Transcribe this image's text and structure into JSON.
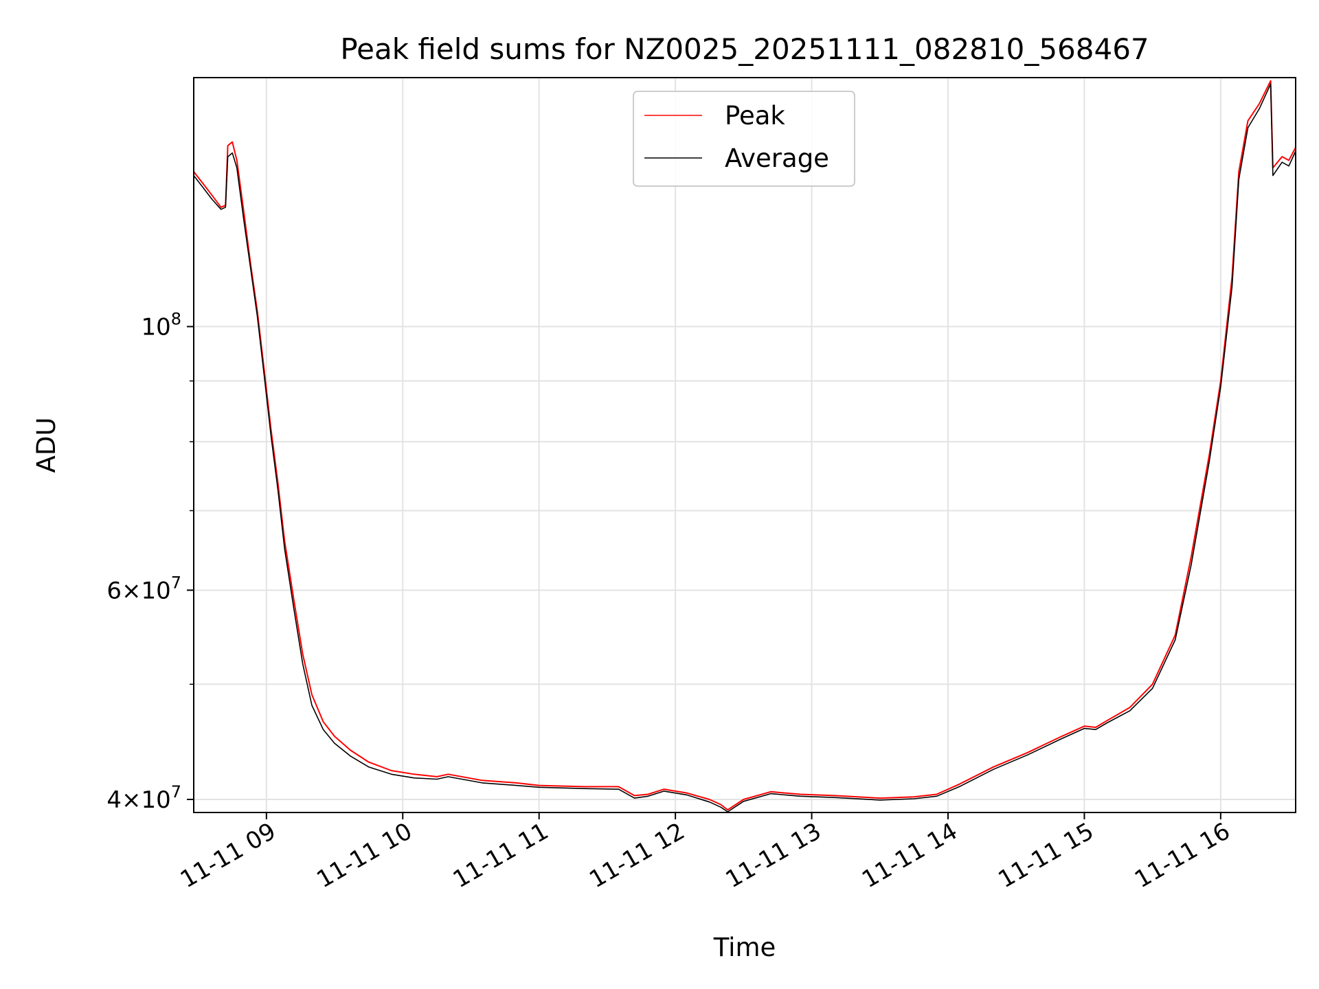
{
  "chart_data": {
    "type": "line",
    "title": "Peak field sums for NZ0025_20251111_082810_568467",
    "xlabel": "Time",
    "ylabel": "ADU",
    "x_is_time": true,
    "xlim": [
      "2025-11-11 08:28",
      "2025-11-11 16:33"
    ],
    "ylim": [
      39000000,
      162000000
    ],
    "yscale": "log",
    "grid": true,
    "legend_position": "top-center",
    "x_ticks": [
      {
        "t": "2025-11-11 09:00",
        "label": "11-11 09"
      },
      {
        "t": "2025-11-11 10:00",
        "label": "11-11 10"
      },
      {
        "t": "2025-11-11 11:00",
        "label": "11-11 11"
      },
      {
        "t": "2025-11-11 12:00",
        "label": "11-11 12"
      },
      {
        "t": "2025-11-11 13:00",
        "label": "11-11 13"
      },
      {
        "t": "2025-11-11 14:00",
        "label": "11-11 14"
      },
      {
        "t": "2025-11-11 15:00",
        "label": "11-11 15"
      },
      {
        "t": "2025-11-11 16:00",
        "label": "11-11 16"
      }
    ],
    "y_ticks_major": [
      {
        "v": 40000000,
        "label_mant": "4",
        "label_exp": "7",
        "label_x": true
      },
      {
        "v": 60000000,
        "label_mant": "6",
        "label_exp": "7",
        "label_x": true
      },
      {
        "v": 100000000,
        "label_mant": "10",
        "label_exp": "8",
        "label_x": false
      }
    ],
    "y_ticks_minor": [
      50000000,
      70000000,
      80000000,
      90000000
    ],
    "series": [
      {
        "name": "Peak",
        "color": "#ff0000",
        "points": [
          [
            "2025-11-11 08:28",
            135000000
          ],
          [
            "2025-11-11 08:32",
            132000000
          ],
          [
            "2025-11-11 08:36",
            129000000
          ],
          [
            "2025-11-11 08:40",
            126000000
          ],
          [
            "2025-11-11 08:42",
            126500000
          ],
          [
            "2025-11-11 08:43",
            142000000
          ],
          [
            "2025-11-11 08:45",
            143000000
          ],
          [
            "2025-11-11 08:47",
            138000000
          ],
          [
            "2025-11-11 08:50",
            125000000
          ],
          [
            "2025-11-11 08:53",
            113000000
          ],
          [
            "2025-11-11 08:56",
            103000000
          ],
          [
            "2025-11-11 08:59",
            92000000
          ],
          [
            "2025-11-11 09:02",
            82000000
          ],
          [
            "2025-11-11 09:05",
            74000000
          ],
          [
            "2025-11-11 09:08",
            66000000
          ],
          [
            "2025-11-11 09:12",
            59000000
          ],
          [
            "2025-11-11 09:16",
            53000000
          ],
          [
            "2025-11-11 09:20",
            49000000
          ],
          [
            "2025-11-11 09:25",
            46500000
          ],
          [
            "2025-11-11 09:30",
            45200000
          ],
          [
            "2025-11-11 09:37",
            44000000
          ],
          [
            "2025-11-11 09:45",
            43000000
          ],
          [
            "2025-11-11 09:55",
            42300000
          ],
          [
            "2025-11-11 10:05",
            42000000
          ],
          [
            "2025-11-11 10:15",
            41800000
          ],
          [
            "2025-11-11 10:20",
            42000000
          ],
          [
            "2025-11-11 10:35",
            41500000
          ],
          [
            "2025-11-11 10:50",
            41300000
          ],
          [
            "2025-11-11 11:00",
            41100000
          ],
          [
            "2025-11-11 11:20",
            41000000
          ],
          [
            "2025-11-11 11:35",
            41000000
          ],
          [
            "2025-11-11 11:42",
            40300000
          ],
          [
            "2025-11-11 11:48",
            40400000
          ],
          [
            "2025-11-11 11:55",
            40800000
          ],
          [
            "2025-11-11 12:05",
            40500000
          ],
          [
            "2025-11-11 12:15",
            40000000
          ],
          [
            "2025-11-11 12:20",
            39600000
          ],
          [
            "2025-11-11 12:23",
            39200000
          ],
          [
            "2025-11-11 12:30",
            40000000
          ],
          [
            "2025-11-11 12:42",
            40600000
          ],
          [
            "2025-11-11 12:55",
            40400000
          ],
          [
            "2025-11-11 13:10",
            40300000
          ],
          [
            "2025-11-11 13:30",
            40100000
          ],
          [
            "2025-11-11 13:45",
            40200000
          ],
          [
            "2025-11-11 13:55",
            40400000
          ],
          [
            "2025-11-11 14:05",
            41200000
          ],
          [
            "2025-11-11 14:20",
            42600000
          ],
          [
            "2025-11-11 14:35",
            43800000
          ],
          [
            "2025-11-11 14:50",
            45200000
          ],
          [
            "2025-11-11 15:00",
            46100000
          ],
          [
            "2025-11-11 15:05",
            46000000
          ],
          [
            "2025-11-11 15:10",
            46600000
          ],
          [
            "2025-11-11 15:20",
            47800000
          ],
          [
            "2025-11-11 15:30",
            50000000
          ],
          [
            "2025-11-11 15:40",
            55000000
          ],
          [
            "2025-11-11 15:47",
            64000000
          ],
          [
            "2025-11-11 15:55",
            78000000
          ],
          [
            "2025-11-11 16:00",
            90000000
          ],
          [
            "2025-11-11 16:05",
            110000000
          ],
          [
            "2025-11-11 16:08",
            135000000
          ],
          [
            "2025-11-11 16:12",
            149000000
          ],
          [
            "2025-11-11 16:17",
            154000000
          ],
          [
            "2025-11-11 16:22",
            161000000
          ],
          [
            "2025-11-11 16:23",
            136000000
          ],
          [
            "2025-11-11 16:27",
            139000000
          ],
          [
            "2025-11-11 16:30",
            138000000
          ],
          [
            "2025-11-11 16:33",
            141500000
          ]
        ]
      },
      {
        "name": "Average",
        "color": "#000000",
        "points": [
          [
            "2025-11-11 08:28",
            134000000
          ],
          [
            "2025-11-11 08:32",
            131000000
          ],
          [
            "2025-11-11 08:36",
            128000000
          ],
          [
            "2025-11-11 08:40",
            125500000
          ],
          [
            "2025-11-11 08:42",
            126000000
          ],
          [
            "2025-11-11 08:43",
            139000000
          ],
          [
            "2025-11-11 08:45",
            140000000
          ],
          [
            "2025-11-11 08:47",
            136000000
          ],
          [
            "2025-11-11 08:50",
            123000000
          ],
          [
            "2025-11-11 08:53",
            112000000
          ],
          [
            "2025-11-11 08:56",
            102000000
          ],
          [
            "2025-11-11 08:59",
            91000000
          ],
          [
            "2025-11-11 09:02",
            81000000
          ],
          [
            "2025-11-11 09:05",
            73000000
          ],
          [
            "2025-11-11 09:08",
            65000000
          ],
          [
            "2025-11-11 09:12",
            58000000
          ],
          [
            "2025-11-11 09:16",
            52000000
          ],
          [
            "2025-11-11 09:20",
            48000000
          ],
          [
            "2025-11-11 09:25",
            45800000
          ],
          [
            "2025-11-11 09:30",
            44600000
          ],
          [
            "2025-11-11 09:37",
            43500000
          ],
          [
            "2025-11-11 09:45",
            42600000
          ],
          [
            "2025-11-11 09:55",
            42000000
          ],
          [
            "2025-11-11 10:05",
            41700000
          ],
          [
            "2025-11-11 10:15",
            41600000
          ],
          [
            "2025-11-11 10:20",
            41800000
          ],
          [
            "2025-11-11 10:35",
            41300000
          ],
          [
            "2025-11-11 10:50",
            41100000
          ],
          [
            "2025-11-11 11:00",
            40950000
          ],
          [
            "2025-11-11 11:20",
            40850000
          ],
          [
            "2025-11-11 11:35",
            40800000
          ],
          [
            "2025-11-11 11:42",
            40100000
          ],
          [
            "2025-11-11 11:48",
            40250000
          ],
          [
            "2025-11-11 11:55",
            40650000
          ],
          [
            "2025-11-11 12:05",
            40350000
          ],
          [
            "2025-11-11 12:15",
            39800000
          ],
          [
            "2025-11-11 12:20",
            39400000
          ],
          [
            "2025-11-11 12:23",
            39050000
          ],
          [
            "2025-11-11 12:30",
            39850000
          ],
          [
            "2025-11-11 12:42",
            40450000
          ],
          [
            "2025-11-11 12:55",
            40250000
          ],
          [
            "2025-11-11 13:10",
            40150000
          ],
          [
            "2025-11-11 13:30",
            39950000
          ],
          [
            "2025-11-11 13:45",
            40050000
          ],
          [
            "2025-11-11 13:55",
            40250000
          ],
          [
            "2025-11-11 14:05",
            41000000
          ],
          [
            "2025-11-11 14:20",
            42400000
          ],
          [
            "2025-11-11 14:35",
            43600000
          ],
          [
            "2025-11-11 14:50",
            45000000
          ],
          [
            "2025-11-11 15:00",
            45900000
          ],
          [
            "2025-11-11 15:05",
            45800000
          ],
          [
            "2025-11-11 15:10",
            46400000
          ],
          [
            "2025-11-11 15:20",
            47500000
          ],
          [
            "2025-11-11 15:30",
            49600000
          ],
          [
            "2025-11-11 15:40",
            54500000
          ],
          [
            "2025-11-11 15:47",
            63000000
          ],
          [
            "2025-11-11 15:55",
            77000000
          ],
          [
            "2025-11-11 16:00",
            89000000
          ],
          [
            "2025-11-11 16:05",
            108000000
          ],
          [
            "2025-11-11 16:08",
            133000000
          ],
          [
            "2025-11-11 16:12",
            147000000
          ],
          [
            "2025-11-11 16:17",
            152500000
          ],
          [
            "2025-11-11 16:22",
            160000000
          ],
          [
            "2025-11-11 16:23",
            134000000
          ],
          [
            "2025-11-11 16:27",
            137500000
          ],
          [
            "2025-11-11 16:30",
            136500000
          ],
          [
            "2025-11-11 16:33",
            140500000
          ]
        ]
      }
    ]
  }
}
